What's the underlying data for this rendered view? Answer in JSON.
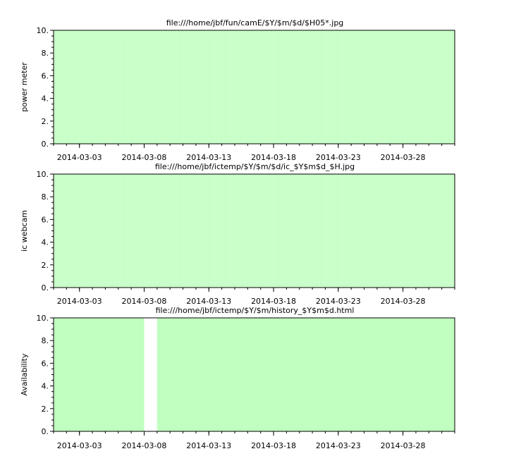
{
  "chart_data": [
    {
      "type": "bar",
      "title": "file:///home/jbf/fun/camE/$Y/$m/$d/$H05*.jpg",
      "xlabel": "",
      "ylabel": "power meter",
      "xlim": [
        "2014-03-01",
        "2014-04-01"
      ],
      "ylim": [
        0,
        10
      ],
      "yticks": [
        "0.",
        "2.",
        "4.",
        "6.",
        "8.",
        "10."
      ],
      "xticks": [
        "2014-03-03",
        "2014-03-08",
        "2014-03-13",
        "2014-03-18",
        "2014-03-23",
        "2014-03-28"
      ],
      "bar_width": "1 hour",
      "value": 10,
      "coverage": [
        [
          "2014-03-01",
          "2014-04-01"
        ]
      ],
      "gaps": [],
      "grid": false,
      "color": "#c0ffc0"
    },
    {
      "type": "bar",
      "title": "file:///home/jbf/ictemp/$Y/$m/$d/ic_$Y$m$d_$H.jpg",
      "xlabel": "",
      "ylabel": "ic webcam",
      "xlim": [
        "2014-03-01",
        "2014-04-01"
      ],
      "ylim": [
        0,
        10
      ],
      "yticks": [
        "0.",
        "2.",
        "4.",
        "6.",
        "8.",
        "10."
      ],
      "xticks": [
        "2014-03-03",
        "2014-03-08",
        "2014-03-13",
        "2014-03-18",
        "2014-03-23",
        "2014-03-28"
      ],
      "bar_width": "1 hour",
      "value": 10,
      "coverage": [
        [
          "2014-03-01",
          "2014-04-01"
        ]
      ],
      "gaps": [],
      "grid": false,
      "color": "#c0ffc0"
    },
    {
      "type": "bar",
      "title": "file:///home/jbf/ictemp/$Y/$m/history_$Y$m$d.html",
      "xlabel": "",
      "ylabel": "Availability",
      "xlim": [
        "2014-03-01",
        "2014-04-01"
      ],
      "ylim": [
        0,
        10
      ],
      "yticks": [
        "0.",
        "2.",
        "4.",
        "6.",
        "8.",
        "10."
      ],
      "xticks": [
        "2014-03-03",
        "2014-03-08",
        "2014-03-13",
        "2014-03-18",
        "2014-03-23",
        "2014-03-28"
      ],
      "bar_width": "1 day",
      "value": 10,
      "coverage": [
        [
          "2014-03-01",
          "2014-03-08"
        ],
        [
          "2014-03-09",
          "2014-04-01"
        ]
      ],
      "gaps": [
        [
          "2014-03-08",
          "2014-03-09"
        ]
      ],
      "grid": false,
      "color": "#c0ffc0"
    }
  ]
}
